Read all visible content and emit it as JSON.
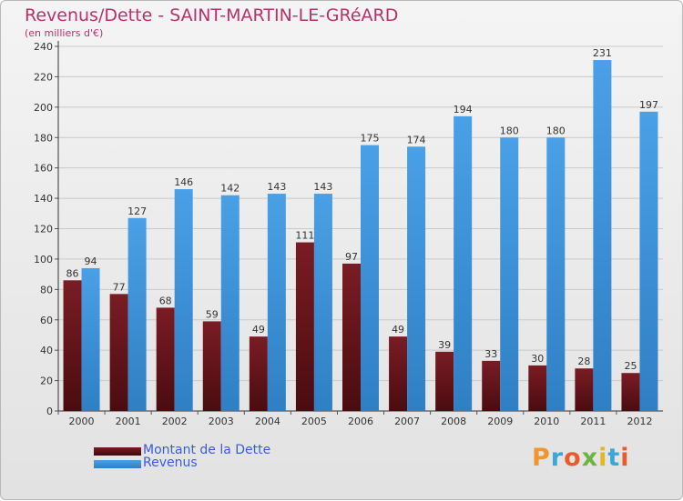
{
  "title": "Revenus/Dette - SAINT-MARTIN-LE-GRéARD",
  "subtitle": "(en milliers d'€)",
  "colors": {
    "dette": "#7a1c24",
    "revenus": "#4aa0e6",
    "title": "#b8336a"
  },
  "legend": {
    "dette_label": "Montant de la Dette",
    "revenus_label": "Revenus"
  },
  "logo": {
    "text": "Proxiti"
  },
  "chart_data": {
    "type": "bar",
    "title": "Revenus/Dette - SAINT-MARTIN-LE-GRéARD",
    "subtitle": "(en milliers d'€)",
    "categories": [
      "2000",
      "2001",
      "2002",
      "2003",
      "2004",
      "2005",
      "2006",
      "2007",
      "2008",
      "2009",
      "2010",
      "2011",
      "2012"
    ],
    "series": [
      {
        "name": "Montant de la Dette",
        "values": [
          86,
          77,
          68,
          59,
          49,
          111,
          97,
          49,
          39,
          33,
          30,
          28,
          25
        ]
      },
      {
        "name": "Revenus",
        "values": [
          94,
          127,
          146,
          142,
          143,
          143,
          175,
          174,
          194,
          180,
          180,
          231,
          197
        ]
      }
    ],
    "ylim": [
      0,
      240
    ],
    "yticks": [
      0,
      20,
      40,
      60,
      80,
      100,
      120,
      140,
      160,
      180,
      200,
      220,
      240
    ],
    "grid": true,
    "legend_position": "bottom-left"
  }
}
